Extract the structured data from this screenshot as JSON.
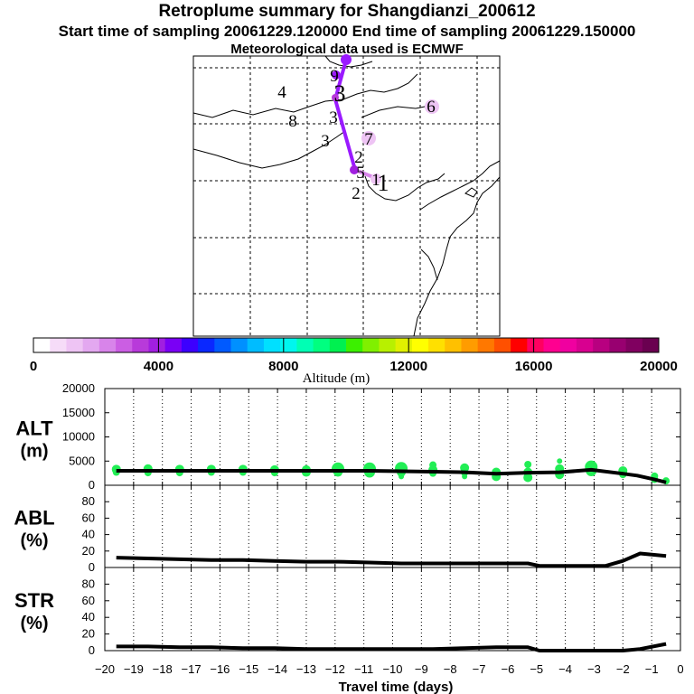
{
  "header": {
    "title": "Retroplume summary for Shangdianzi_200612",
    "sampling": "Start time of sampling 20061229.120000     End time of sampling 20061229.150000",
    "met": "Meteorological data used is ECMWF"
  },
  "colorbar": {
    "label": "Altitude (m)",
    "min": 0,
    "max": 20000,
    "tick_labels": [
      "0",
      "4000",
      "8000",
      "12000",
      "16000",
      "20000"
    ],
    "colors": [
      "#ffffff",
      "#f6dcf8",
      "#eec4f4",
      "#e3a8f0",
      "#d884ea",
      "#cb5ee3",
      "#b83ada",
      "#a11fe0",
      "#7a00f5",
      "#3c00ff",
      "#0a28ff",
      "#005aff",
      "#0090ff",
      "#00bcff",
      "#00e0ff",
      "#00f6ee",
      "#00ffb4",
      "#00ff80",
      "#00f050",
      "#3cf000",
      "#80f000",
      "#b8f000",
      "#e0f000",
      "#ffff00",
      "#ffe000",
      "#ffc000",
      "#ff9c00",
      "#ff7800",
      "#ff5000",
      "#ff0000",
      "#ff0060",
      "#ff0090",
      "#f000a0",
      "#d80090",
      "#b80080",
      "#980070",
      "#800060",
      "#6a0050"
    ]
  },
  "map": {
    "labels": [
      "4",
      "8",
      "3",
      "3",
      "3",
      "9",
      "6",
      "7",
      "2",
      "5",
      "2",
      "1",
      "1"
    ],
    "trajectory_color": "#9a1aff"
  },
  "chart_data": {
    "type": "line",
    "xlabel": "Travel time (days)",
    "x_ticks": [
      -20,
      -19,
      -18,
      -17,
      -16,
      -15,
      -14,
      -13,
      -12,
      -11,
      -10,
      -9,
      -8,
      -7,
      -6,
      -5,
      -4,
      -3,
      -2,
      -1,
      0
    ],
    "x_tick_labels": [
      "−20",
      "−19",
      "−18",
      "−17",
      "−16",
      "−15",
      "−14",
      "−13",
      "−12",
      "−11",
      "−10",
      "−9",
      "−8",
      "−7",
      "−6",
      "−5",
      "−4",
      "−3",
      "−2",
      "−1",
      "0"
    ],
    "xlim": [
      -20,
      0
    ],
    "panels": [
      {
        "name": "ALT",
        "label_line1": "ALT",
        "label_line2": "(m)",
        "ylim": [
          0,
          20000
        ],
        "y_ticks": [
          0,
          5000,
          10000,
          15000,
          20000
        ],
        "y_tick_labels": [
          "0",
          "5000",
          "10000",
          "15000",
          "20000"
        ],
        "x": [
          -19.6,
          -18.5,
          -17.4,
          -16.3,
          -15.2,
          -14.1,
          -13.0,
          -11.9,
          -10.8,
          -9.7,
          -8.6,
          -7.5,
          -6.4,
          -5.3,
          -4.2,
          -3.1,
          -2.0,
          -1.5,
          -0.9,
          -0.5
        ],
        "y": [
          3000,
          3000,
          3000,
          3000,
          3000,
          3000,
          3000,
          3000,
          3000,
          2900,
          2800,
          2700,
          2400,
          2600,
          2700,
          3200,
          2400,
          2000,
          1200,
          600
        ],
        "scatter_color": "#22ee55",
        "scatter": [
          {
            "x": -19.6,
            "y": 3300,
            "s": 5
          },
          {
            "x": -19.6,
            "y": 2700,
            "s": 4
          },
          {
            "x": -18.5,
            "y": 3400,
            "s": 5
          },
          {
            "x": -18.5,
            "y": 2600,
            "s": 4
          },
          {
            "x": -17.4,
            "y": 3300,
            "s": 5
          },
          {
            "x": -17.4,
            "y": 2600,
            "s": 4
          },
          {
            "x": -16.3,
            "y": 3300,
            "s": 5
          },
          {
            "x": -16.3,
            "y": 2700,
            "s": 4
          },
          {
            "x": -15.2,
            "y": 3300,
            "s": 5
          },
          {
            "x": -15.2,
            "y": 2700,
            "s": 4
          },
          {
            "x": -14.1,
            "y": 3200,
            "s": 5
          },
          {
            "x": -14.1,
            "y": 2600,
            "s": 4
          },
          {
            "x": -13.0,
            "y": 3200,
            "s": 5
          },
          {
            "x": -13.0,
            "y": 2700,
            "s": 5
          },
          {
            "x": -11.9,
            "y": 3400,
            "s": 7
          },
          {
            "x": -11.9,
            "y": 2700,
            "s": 5
          },
          {
            "x": -10.8,
            "y": 3400,
            "s": 7
          },
          {
            "x": -10.8,
            "y": 2700,
            "s": 6
          },
          {
            "x": -9.7,
            "y": 3500,
            "s": 7
          },
          {
            "x": -9.7,
            "y": 2700,
            "s": 5
          },
          {
            "x": -9.7,
            "y": 1800,
            "s": 3
          },
          {
            "x": -8.6,
            "y": 4200,
            "s": 4
          },
          {
            "x": -8.6,
            "y": 3200,
            "s": 5
          },
          {
            "x": -8.6,
            "y": 2500,
            "s": 4
          },
          {
            "x": -7.5,
            "y": 3600,
            "s": 5
          },
          {
            "x": -7.5,
            "y": 2600,
            "s": 4
          },
          {
            "x": -7.5,
            "y": 1800,
            "s": 3
          },
          {
            "x": -6.4,
            "y": 2700,
            "s": 5
          },
          {
            "x": -6.4,
            "y": 1800,
            "s": 5
          },
          {
            "x": -5.3,
            "y": 4300,
            "s": 4
          },
          {
            "x": -5.3,
            "y": 2700,
            "s": 5
          },
          {
            "x": -5.3,
            "y": 1600,
            "s": 5
          },
          {
            "x": -4.2,
            "y": 5000,
            "s": 3
          },
          {
            "x": -4.2,
            "y": 3400,
            "s": 5
          },
          {
            "x": -4.2,
            "y": 2200,
            "s": 5
          },
          {
            "x": -3.1,
            "y": 3800,
            "s": 7
          },
          {
            "x": -3.1,
            "y": 3000,
            "s": 6
          },
          {
            "x": -2.0,
            "y": 3000,
            "s": 5
          },
          {
            "x": -2.0,
            "y": 2200,
            "s": 4
          },
          {
            "x": -0.9,
            "y": 1900,
            "s": 4
          },
          {
            "x": -0.9,
            "y": 1200,
            "s": 4
          },
          {
            "x": -0.5,
            "y": 900,
            "s": 4
          }
        ]
      },
      {
        "name": "ABL",
        "label_line1": "ABL",
        "label_line2": "(%)",
        "ylim": [
          0,
          100
        ],
        "y_ticks": [
          0,
          20,
          40,
          60,
          80
        ],
        "y_tick_labels": [
          "0",
          "20",
          "40",
          "60",
          "80"
        ],
        "x": [
          -19.6,
          -18.5,
          -17.4,
          -16.3,
          -15.2,
          -14.1,
          -13.0,
          -11.9,
          -10.8,
          -9.7,
          -8.6,
          -7.5,
          -6.4,
          -5.3,
          -4.9,
          -4.2,
          -3.1,
          -2.6,
          -2.0,
          -1.4,
          -0.5
        ],
        "y": [
          12,
          11,
          10,
          9,
          9,
          8,
          7,
          7,
          6,
          5,
          5,
          5,
          5,
          5,
          2,
          2,
          2,
          2,
          8,
          17,
          14
        ]
      },
      {
        "name": "STR",
        "label_line1": "STR",
        "label_line2": "(%)",
        "ylim": [
          0,
          100
        ],
        "y_ticks": [
          0,
          20,
          40,
          60,
          80
        ],
        "y_tick_labels": [
          "0",
          "20",
          "40",
          "60",
          "80"
        ],
        "x": [
          -19.6,
          -18.5,
          -17.4,
          -16.3,
          -15.2,
          -14.1,
          -13.0,
          -11.9,
          -10.8,
          -9.7,
          -8.6,
          -7.5,
          -6.4,
          -5.3,
          -4.9,
          -4.2,
          -3.1,
          -2.6,
          -2.0,
          -1.4,
          -0.5
        ],
        "y": [
          5,
          5,
          4,
          4,
          3,
          3,
          2,
          2,
          2,
          2,
          2,
          3,
          4,
          4,
          0,
          0,
          0,
          0,
          0,
          2,
          8
        ]
      }
    ]
  }
}
